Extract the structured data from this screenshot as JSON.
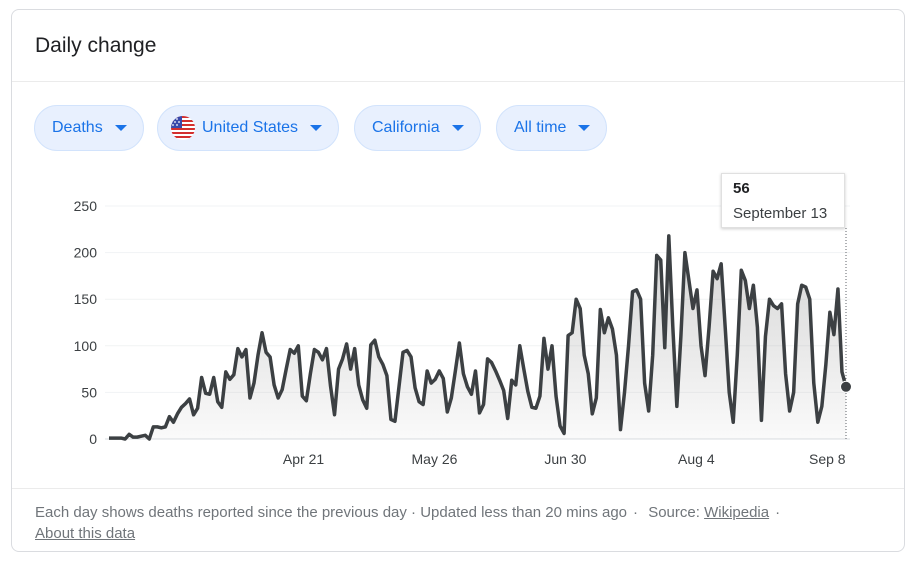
{
  "title": "Daily change",
  "filters": {
    "metric": "Deaths",
    "country": "United States",
    "region": "California",
    "period": "All time"
  },
  "tooltip": {
    "value": "56",
    "date": "September 13"
  },
  "footer": {
    "note": "Each day shows deaths reported since the previous day · Updated less than 20 mins ago",
    "source_label": "Source:",
    "source_link": "Wikipedia",
    "about_link": "About this data"
  },
  "colors": {
    "line": "#3c4043",
    "accent": "#1a73e8",
    "chip_bg": "#e8f0fe"
  },
  "chart_data": {
    "type": "area",
    "title": "",
    "xlabel": "",
    "ylabel": "",
    "ylim": [
      0,
      250
    ],
    "yticks": [
      0,
      50,
      100,
      150,
      200,
      250
    ],
    "xticks": [
      "Apr 21",
      "May 26",
      "Jun 30",
      "Aug 4",
      "Sep 8"
    ],
    "x_start": "Feb 29",
    "x_end": "Sep 13",
    "grid": true,
    "series": [
      {
        "values": [
          1,
          1,
          1,
          1,
          0,
          5,
          2,
          2,
          3,
          4,
          0,
          13,
          13,
          12,
          13,
          24,
          18,
          27,
          34,
          38,
          43,
          26,
          33,
          66,
          49,
          48,
          66,
          40,
          34,
          72,
          64,
          69,
          97,
          88,
          96,
          44,
          60,
          90,
          114,
          93,
          88,
          58,
          44,
          53,
          75,
          96,
          92,
          100,
          46,
          41,
          70,
          96,
          93,
          85,
          97,
          57,
          26,
          75,
          86,
          102,
          75,
          97,
          58,
          42,
          33,
          101,
          106,
          88,
          80,
          68,
          21,
          19,
          56,
          93,
          95,
          88,
          55,
          40,
          37,
          73,
          60,
          64,
          73,
          65,
          29,
          44,
          73,
          103,
          70,
          56,
          48,
          73,
          28,
          37,
          86,
          82,
          73,
          63,
          52,
          22,
          63,
          58,
          100,
          75,
          51,
          34,
          33,
          46,
          108,
          75,
          100,
          46,
          14,
          6,
          111,
          114,
          150,
          140,
          90,
          70,
          27,
          44,
          139,
          114,
          130,
          118,
          90,
          10,
          50,
          100,
          158,
          160,
          150,
          60,
          30,
          90,
          197,
          192,
          98,
          218,
          120,
          35,
          110,
          200,
          170,
          140,
          160,
          100,
          68,
          120,
          180,
          172,
          188,
          120,
          50,
          18,
          90,
          181,
          170,
          140,
          165,
          120,
          20,
          110,
          150,
          143,
          140,
          145,
          70,
          30,
          50,
          145,
          165,
          163,
          150,
          60,
          18,
          35,
          80,
          136,
          112,
          161,
          72,
          56
        ]
      }
    ]
  }
}
